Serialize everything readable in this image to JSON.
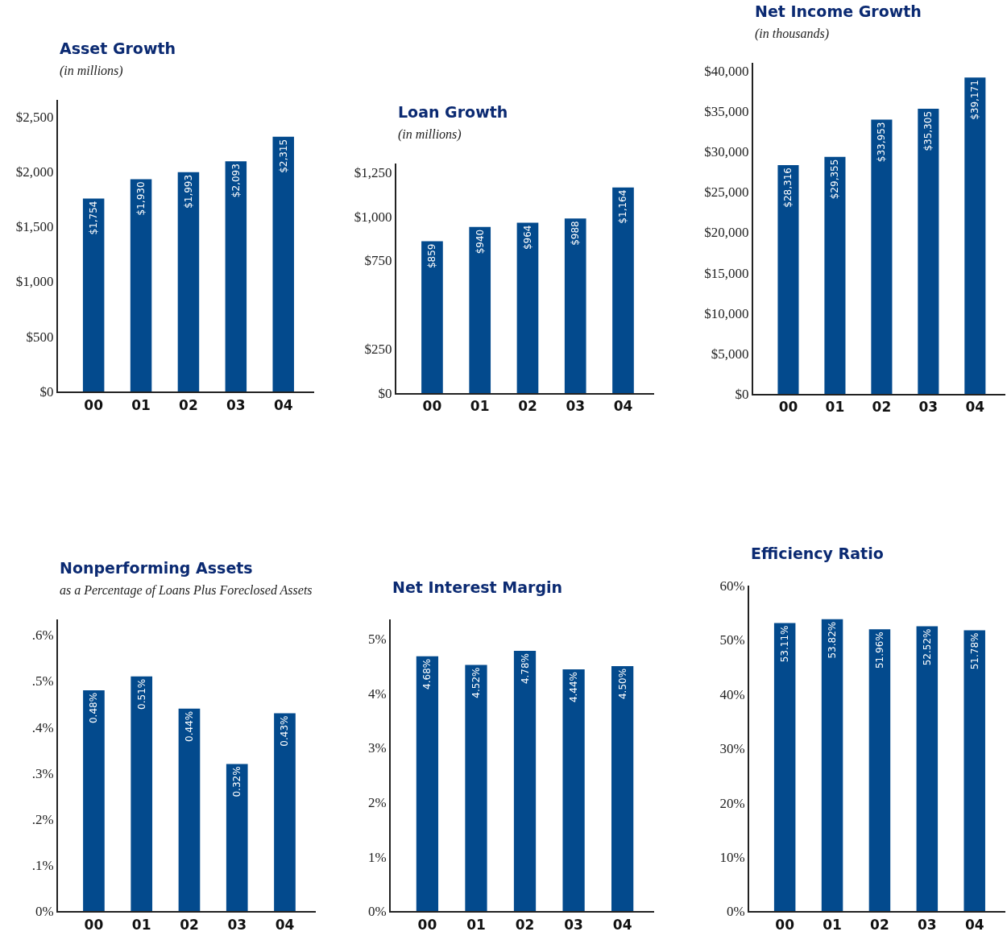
{
  "chart_data": [
    {
      "type": "bar",
      "title": "Asset Growth",
      "subtitle": "(in millions)",
      "categories": [
        "00",
        "01",
        "02",
        "03",
        "04"
      ],
      "values": [
        1754,
        1930,
        1993,
        2093,
        2315
      ],
      "value_labels": [
        "$1,754",
        "$1,930",
        "$1,993",
        "$2,093",
        "$2,315"
      ],
      "color": "#034a8d",
      "ylim": [
        0,
        2650
      ],
      "yticks": [
        {
          "value": 0,
          "label": "$0"
        },
        {
          "value": 500,
          "label": "$500"
        },
        {
          "value": 1000,
          "label": "$1,000"
        },
        {
          "value": 1500,
          "label": "$1,500"
        },
        {
          "value": 2000,
          "label": "$2,000"
        },
        {
          "value": 2500,
          "label": "$2,500"
        }
      ]
    },
    {
      "type": "bar",
      "title": "Loan Growth",
      "subtitle": "(in millions)",
      "categories": [
        "00",
        "01",
        "02",
        "03",
        "04"
      ],
      "values": [
        859,
        940,
        964,
        988,
        1164
      ],
      "value_labels": [
        "$859",
        "$940",
        "$964",
        "$988",
        "$1,164"
      ],
      "color": "#034a8d",
      "ylim": [
        0,
        1300
      ],
      "yticks": [
        {
          "value": 0,
          "label": "$0"
        },
        {
          "value": 250,
          "label": "$250"
        },
        {
          "value": 750,
          "label": "$750"
        },
        {
          "value": 1000,
          "label": "$1,000"
        },
        {
          "value": 1250,
          "label": "$1,250"
        }
      ]
    },
    {
      "type": "bar",
      "title": "Net Income Growth",
      "subtitle": "(in thousands)",
      "categories": [
        "00",
        "01",
        "02",
        "03",
        "04"
      ],
      "values": [
        28316,
        29355,
        33953,
        35305,
        39171
      ],
      "value_labels": [
        "$28,316",
        "$29,355",
        "$33,953",
        "$35,305",
        "$39,171"
      ],
      "color": "#034a8d",
      "ylim": [
        0,
        41000
      ],
      "yticks": [
        {
          "value": 0,
          "label": "$0"
        },
        {
          "value": 5000,
          "label": "$5,000"
        },
        {
          "value": 10000,
          "label": "$10,000"
        },
        {
          "value": 15000,
          "label": "$15,000"
        },
        {
          "value": 20000,
          "label": "$20,000"
        },
        {
          "value": 25000,
          "label": "$25,000"
        },
        {
          "value": 30000,
          "label": "$30,000"
        },
        {
          "value": 35000,
          "label": "$35,000"
        },
        {
          "value": 40000,
          "label": "$40,000"
        }
      ]
    },
    {
      "type": "bar",
      "title": "Nonperforming Assets",
      "subtitle": "as a Percentage of Loans Plus Foreclosed Assets",
      "categories": [
        "00",
        "01",
        "02",
        "03",
        "04"
      ],
      "values": [
        0.48,
        0.51,
        0.44,
        0.32,
        0.43
      ],
      "value_labels": [
        "0.48%",
        "0.51%",
        "0.44%",
        "0.32%",
        "0.43%"
      ],
      "color": "#034a8d",
      "ylim": [
        0,
        0.633
      ],
      "yticks": [
        {
          "value": 0,
          "label": "0%"
        },
        {
          "value": 0.1,
          "label": ".1%"
        },
        {
          "value": 0.2,
          "label": ".2%"
        },
        {
          "value": 0.3,
          "label": ".3%"
        },
        {
          "value": 0.4,
          "label": ".4%"
        },
        {
          "value": 0.5,
          "label": ".5%"
        },
        {
          "value": 0.6,
          "label": ".6%"
        }
      ]
    },
    {
      "type": "bar",
      "title": "Net Interest Margin",
      "categories": [
        "00",
        "01",
        "02",
        "03",
        "04"
      ],
      "values": [
        4.68,
        4.52,
        4.78,
        4.44,
        4.5
      ],
      "value_labels": [
        "4.68%",
        "4.52%",
        "4.78%",
        "4.44%",
        "4.50%"
      ],
      "color": "#034a8d",
      "ylim": [
        0,
        5.35
      ],
      "yticks": [
        {
          "value": 0,
          "label": "0%"
        },
        {
          "value": 1,
          "label": "1%"
        },
        {
          "value": 2,
          "label": "2%"
        },
        {
          "value": 3,
          "label": "3%"
        },
        {
          "value": 4,
          "label": "4%"
        },
        {
          "value": 5,
          "label": "5%"
        }
      ]
    },
    {
      "type": "bar",
      "title": "Efficiency Ratio",
      "categories": [
        "00",
        "01",
        "02",
        "03",
        "04"
      ],
      "values": [
        53.11,
        53.82,
        51.96,
        52.52,
        51.78
      ],
      "value_labels": [
        "53.11%",
        "53.82%",
        "51.96%",
        "52.52%",
        "51.78%"
      ],
      "color": "#034a8d",
      "ylim": [
        0,
        60
      ],
      "yticks": [
        {
          "value": 0,
          "label": "0%"
        },
        {
          "value": 10,
          "label": "10%"
        },
        {
          "value": 20,
          "label": "20%"
        },
        {
          "value": 30,
          "label": "30%"
        },
        {
          "value": 40,
          "label": "40%"
        },
        {
          "value": 50,
          "label": "50%"
        },
        {
          "value": 60,
          "label": "60%"
        }
      ]
    }
  ]
}
